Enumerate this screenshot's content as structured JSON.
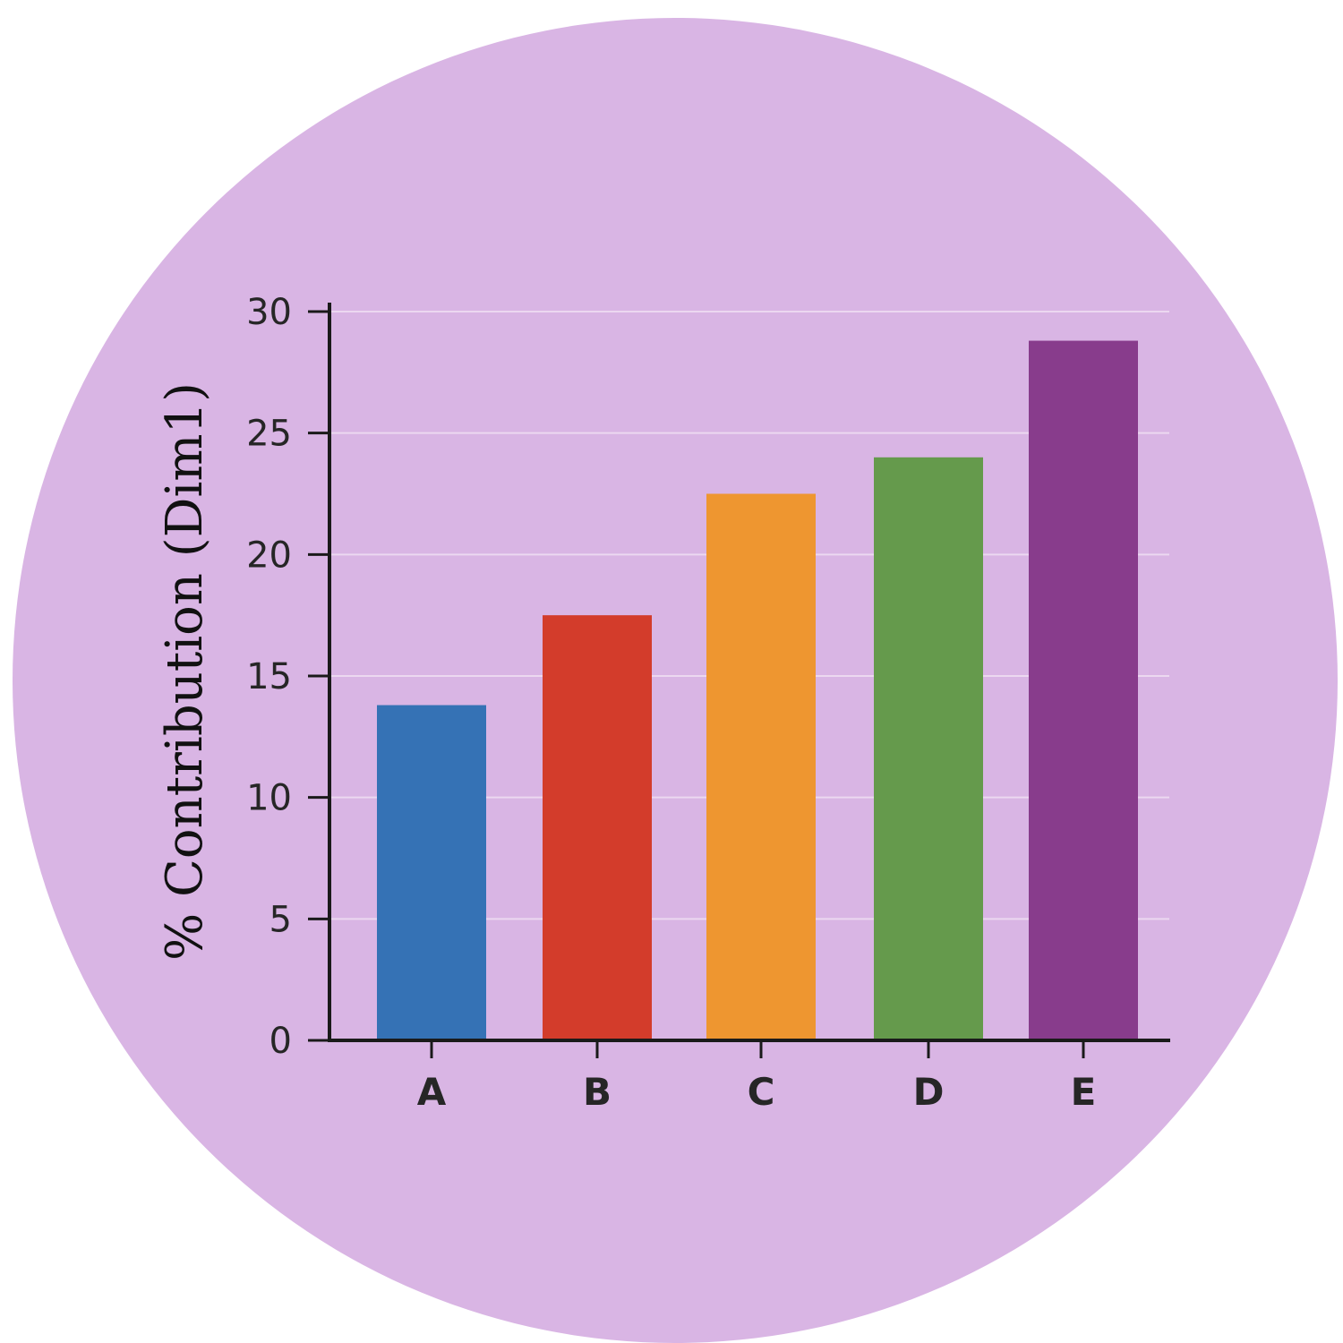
{
  "chart_data": {
    "type": "bar",
    "title": "",
    "xlabel": "",
    "ylabel": "% Contribution (Dim1)",
    "categories": [
      "A",
      "B",
      "C",
      "D",
      "E"
    ],
    "values": [
      13.8,
      17.5,
      22.5,
      24.0,
      28.8
    ],
    "colors": [
      "#3572b5",
      "#d33c2b",
      "#ee9630",
      "#659a4c",
      "#883c8c"
    ],
    "ylim": [
      0,
      30
    ],
    "yticks": [
      0,
      5,
      10,
      15,
      20,
      25,
      30
    ],
    "grid": true,
    "legend": "none",
    "background_color": "#d9b5e4"
  }
}
